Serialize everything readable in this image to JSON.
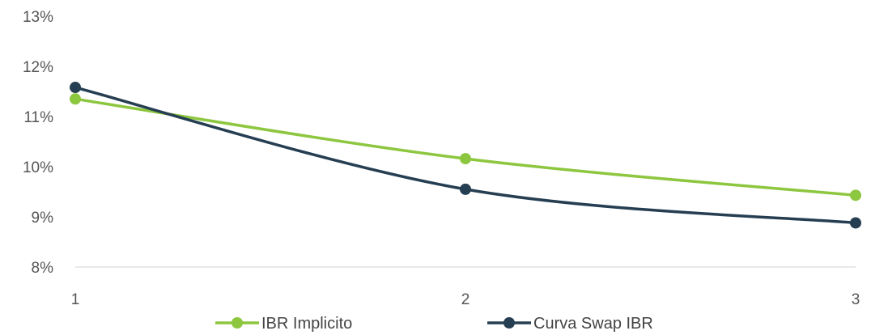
{
  "chart_data": {
    "type": "line",
    "x": [
      1,
      2,
      3
    ],
    "xticks": [
      "1",
      "2",
      "3"
    ],
    "yticks": [
      "8%",
      "9%",
      "10%",
      "11%",
      "12%",
      "13%"
    ],
    "ylim": [
      8,
      13
    ],
    "title": "",
    "xlabel": "",
    "ylabel": "",
    "grid": false,
    "legend": "bottom",
    "series": [
      {
        "name": "IBR Implicito",
        "color": "#8dc63f",
        "values": [
          11.35,
          10.16,
          9.43
        ]
      },
      {
        "name": "Curva Swap IBR",
        "color": "#263e52",
        "values": [
          11.58,
          9.55,
          8.88
        ]
      }
    ]
  }
}
